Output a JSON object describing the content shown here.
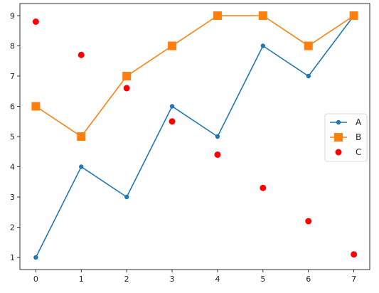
{
  "chart_data": {
    "type": "line",
    "title": "",
    "xlabel": "",
    "ylabel": "",
    "x": [
      0,
      1,
      2,
      3,
      4,
      5,
      6,
      7
    ],
    "xlim": [
      -0.35,
      7.35
    ],
    "ylim": [
      0.6,
      9.4
    ],
    "xticks": [
      "0",
      "1",
      "2",
      "3",
      "4",
      "5",
      "6",
      "7"
    ],
    "yticks": [
      "1",
      "2",
      "3",
      "4",
      "5",
      "6",
      "7",
      "8",
      "9"
    ],
    "grid": false,
    "legend_position": "center-right",
    "series": [
      {
        "name": "A",
        "kind": "line",
        "marker": "circle",
        "color": "#1f77b4",
        "values": [
          1,
          4,
          3,
          6,
          5,
          8,
          7,
          9
        ]
      },
      {
        "name": "B",
        "kind": "line",
        "marker": "square",
        "color": "#ff7f0e",
        "values": [
          6,
          5,
          7,
          8,
          9,
          9,
          8,
          9
        ]
      },
      {
        "name": "C",
        "kind": "scatter",
        "marker": "circle",
        "color": "#ff0000",
        "values": [
          8.8,
          7.7,
          6.6,
          5.5,
          4.4,
          3.3,
          2.2,
          1.1
        ]
      }
    ]
  }
}
